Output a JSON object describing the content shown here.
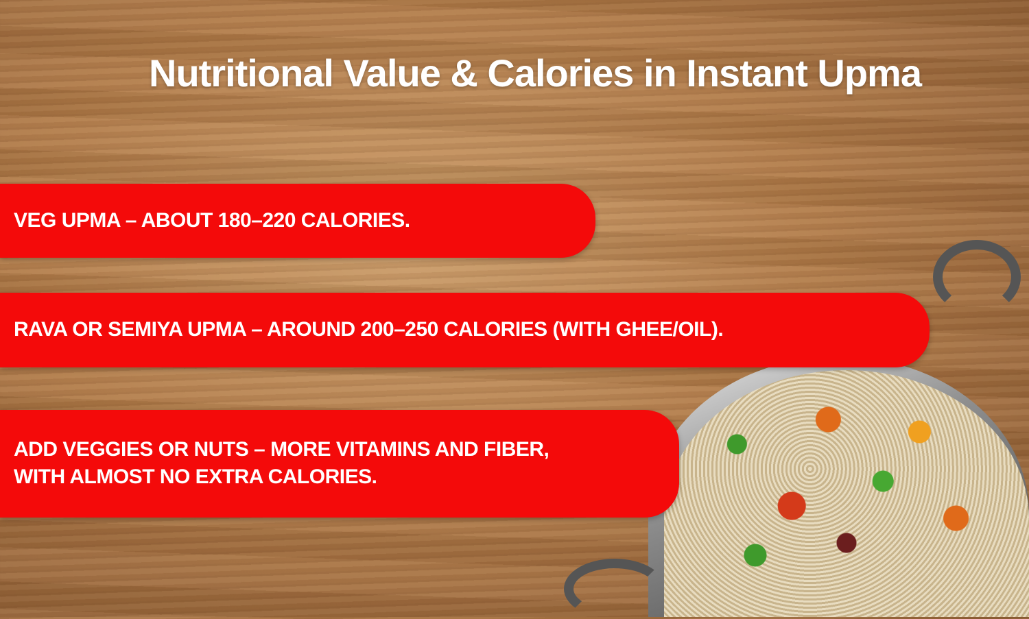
{
  "title": "Nutritional Value & Calories in Instant Upma",
  "colors": {
    "banner": "#f40a0a",
    "text": "#ffffff",
    "background": "wood-brown"
  },
  "items": [
    {
      "lines": [
        "VEG UPMA – ABOUT 180–220 CALORIES."
      ]
    },
    {
      "lines": [
        "RAVA OR SEMIYA UPMA – AROUND 200–250 CALORIES (WITH GHEE/OIL)."
      ]
    },
    {
      "lines": [
        "ADD VEGGIES OR NUTS – MORE VITAMINS AND FIBER,",
        "WITH ALMOST NO EXTRA CALORIES."
      ]
    }
  ],
  "image": {
    "subject": "upma-bowl"
  }
}
